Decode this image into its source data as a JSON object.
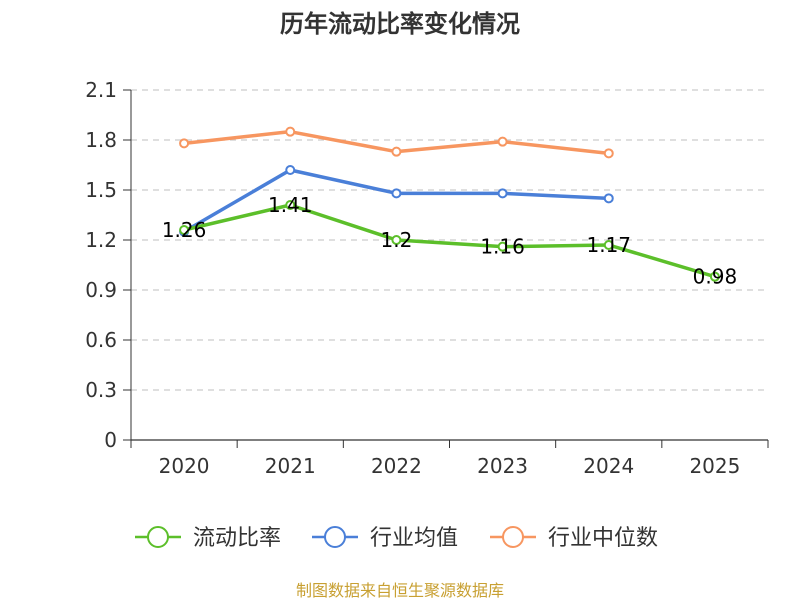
{
  "chart_data": {
    "type": "line",
    "title": "历年流动比率变化情况",
    "categories": [
      "2020",
      "2021",
      "2022",
      "2023",
      "2024",
      "2025"
    ],
    "ylim": [
      0,
      2.1
    ],
    "yticks": [
      "0",
      "0.3",
      "0.6",
      "0.9",
      "1.2",
      "1.5",
      "1.8",
      "2.1"
    ],
    "ytick_values": [
      0,
      0.3,
      0.6,
      0.9,
      1.2,
      1.5,
      1.8,
      2.1
    ],
    "grid": true,
    "legend_position": "bottom",
    "series": [
      {
        "name": "流动比率",
        "color": "#5cbf2a",
        "values": [
          1.26,
          1.41,
          1.2,
          1.16,
          1.17,
          0.98
        ],
        "labels": [
          "1.26",
          "1.41",
          "1.2",
          "1.16",
          "1.17",
          "0.98"
        ]
      },
      {
        "name": "行业均值",
        "color": "#4a7fd8",
        "values": [
          1.25,
          1.62,
          1.48,
          1.48,
          1.45,
          null
        ]
      },
      {
        "name": "行业中位数",
        "color": "#f79660",
        "values": [
          1.78,
          1.85,
          1.73,
          1.79,
          1.72,
          null
        ]
      }
    ]
  },
  "source": "制图数据来自恒生聚源数据库"
}
